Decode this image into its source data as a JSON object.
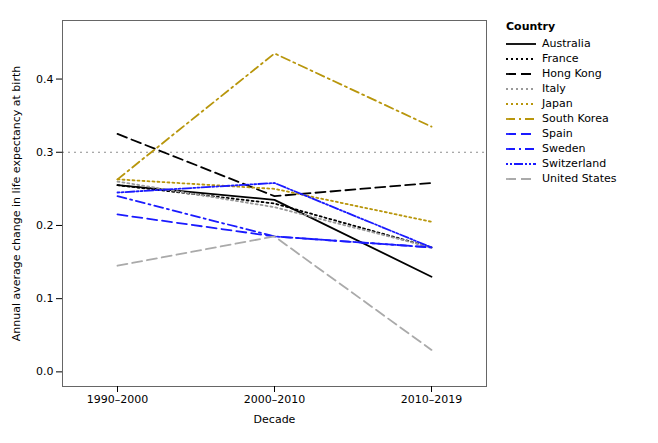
{
  "chart_data": {
    "type": "line",
    "xlabel": "Decade",
    "ylabel": "Annual average change in life expectancy at birth",
    "categories": [
      "1990–2000",
      "2000–2010",
      "2010–2019"
    ],
    "series": [
      {
        "name": "Australia",
        "color": "#000000",
        "line_style": "solid",
        "values": [
          0.255,
          0.235,
          0.13
        ]
      },
      {
        "name": "France",
        "color": "#000000",
        "line_style": "dotted",
        "values": [
          0.255,
          0.23,
          0.17
        ]
      },
      {
        "name": "Hong Kong",
        "color": "#000000",
        "line_style": "longdash",
        "values": [
          0.325,
          0.24,
          0.258
        ]
      },
      {
        "name": "Italy",
        "color": "#999999",
        "line_style": "dotted",
        "values": [
          0.26,
          0.225,
          0.17
        ]
      },
      {
        "name": "Japan",
        "color": "#b8960c",
        "line_style": "dotted",
        "values": [
          0.263,
          0.25,
          0.205
        ]
      },
      {
        "name": "South Korea",
        "color": "#b8960c",
        "line_style": "dashdot",
        "values": [
          0.263,
          0.435,
          0.335
        ]
      },
      {
        "name": "Spain",
        "color": "#1a1aff",
        "line_style": "longdash",
        "values": [
          0.215,
          0.185,
          0.17
        ]
      },
      {
        "name": "Sweden",
        "color": "#1a1aff",
        "line_style": "dashdot",
        "values": [
          0.24,
          0.185,
          0.17
        ]
      },
      {
        "name": "Switzerland",
        "color": "#1a1aff",
        "line_style": "dotdotdash",
        "values": [
          0.245,
          0.258,
          0.17
        ]
      },
      {
        "name": "United States",
        "color": "#aaaaaa",
        "line_style": "longdash",
        "values": [
          0.145,
          0.185,
          0.03
        ]
      }
    ],
    "reference_line": 0.3,
    "ylim": [
      -0.02,
      0.48
    ],
    "yticks": [
      {
        "value": 0.0,
        "label": "0.0"
      },
      0.1,
      0.2,
      0.3,
      0.4
    ],
    "grid": false,
    "legend": "right",
    "legend_title": "Country"
  }
}
